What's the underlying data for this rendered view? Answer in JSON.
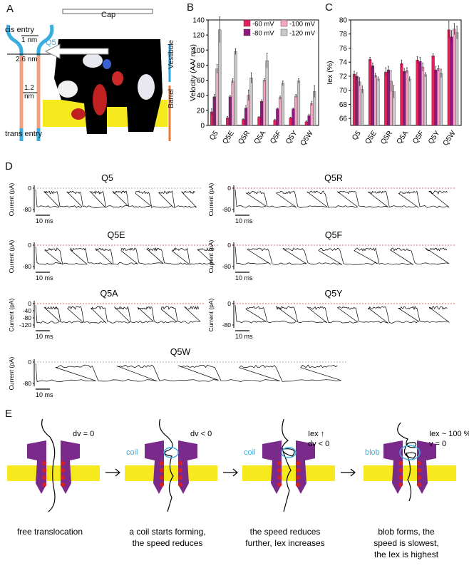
{
  "panels": {
    "a": "A",
    "b": "B",
    "c": "C",
    "d": "D",
    "e": "E"
  },
  "panelA": {
    "cap": "Cap",
    "cis_entry": "cis entry",
    "trans_entry": "trans entry",
    "d1": "1 nm",
    "d2": "2.6 nm",
    "d3a": "1.2",
    "d3b": "nm",
    "q5": "Q5",
    "vestibule": "Vestibule",
    "barrel": "Barrel",
    "colors": {
      "cis": "#3aaee0",
      "trans": "#f0a080",
      "vestibule": "#2aa6e0",
      "barrel": "#e87a3a",
      "membrane": "#f6ea1e"
    }
  },
  "chart_data": [
    {
      "type": "bar",
      "ylabel": "Velocity (AA/ ms)",
      "ylim": [
        0,
        140
      ],
      "yticks": [
        "0",
        "20",
        "40",
        "60",
        "80",
        "100",
        "120",
        "140"
      ],
      "categories": [
        "Q5",
        "Q5E",
        "Q5R",
        "Q5A",
        "Q5F",
        "Q5Y",
        "Q5W"
      ],
      "series": [
        {
          "name": "-60 mV",
          "color": "#e0245e",
          "values": [
            18,
            10,
            8,
            11,
            7,
            10,
            5
          ]
        },
        {
          "name": "-80 mV",
          "color": "#8b1a7a",
          "values": [
            38,
            38,
            23,
            32,
            22,
            22,
            13
          ]
        },
        {
          "name": "-100 mV",
          "color": "#f2a4c4",
          "values": [
            75,
            59,
            40,
            60,
            37,
            39,
            29
          ]
        },
        {
          "name": "-120 mV",
          "color": "#c8c8c8",
          "values": [
            127,
            98,
            63,
            86,
            56,
            59,
            45
          ]
        }
      ],
      "errors": [
        [
          4,
          2,
          1,
          1,
          1,
          1,
          1
        ],
        [
          3,
          2,
          3,
          2,
          1,
          1,
          2
        ],
        [
          6,
          3,
          7,
          2,
          2,
          2,
          3
        ],
        [
          17,
          4,
          7,
          10,
          3,
          3,
          8
        ]
      ],
      "legend": "top-right"
    },
    {
      "type": "bar",
      "ylabel": "Iex (%)",
      "ylim": [
        65,
        80
      ],
      "yticks": [
        "66",
        "68",
        "70",
        "72",
        "74",
        "76",
        "78",
        "80"
      ],
      "categories": [
        "Q5",
        "Q5E",
        "Q5R",
        "Q5A",
        "Q5F",
        "Q5Y",
        "Q5W"
      ],
      "series": [
        {
          "name": "-60 mV",
          "color": "#e0245e",
          "values": [
            72.3,
            74.4,
            72.6,
            73.8,
            74.3,
            74.9,
            78.6
          ]
        },
        {
          "name": "-80 mV",
          "color": "#8b1a7a",
          "values": [
            72.0,
            73.5,
            72.9,
            72.7,
            74.1,
            72.9,
            77.6
          ]
        },
        {
          "name": "-100 mV",
          "color": "#f2a4c4",
          "values": [
            71.2,
            72.1,
            71.3,
            72.8,
            73.3,
            73.1,
            78.7
          ]
        },
        {
          "name": "-120 mV",
          "color": "#c8c8c8",
          "values": [
            70.1,
            71.6,
            69.8,
            71.6,
            72.2,
            72.4,
            78.2
          ]
        }
      ],
      "errors": [
        [
          0.4,
          0.3,
          0.6,
          0.5,
          0.5,
          0.3,
          1.2
        ],
        [
          0.5,
          0.4,
          0.5,
          0.4,
          0.6,
          0.5,
          0.9
        ],
        [
          0.6,
          0.3,
          1.5,
          0.4,
          0.6,
          0.4,
          0.8
        ],
        [
          0.5,
          0.3,
          0.9,
          0.3,
          0.3,
          0.6,
          0.9
        ]
      ]
    }
  ],
  "traces": [
    {
      "title": "Q5",
      "ylabel": "Current (pA)",
      "ticks": [
        "0",
        "-80"
      ],
      "scalebar": "10 ms",
      "blocks": 7,
      "dashed": false
    },
    {
      "title": "Q5R",
      "ylabel": "Current (pA)",
      "ticks": [
        "0",
        "-80"
      ],
      "scalebar": "10 ms",
      "blocks": 7,
      "dashed": true
    },
    {
      "title": "Q5E",
      "ylabel": "Current (pA)",
      "ticks": [
        "0",
        "-80"
      ],
      "scalebar": "10 ms",
      "blocks": 7,
      "dashed": true
    },
    {
      "title": "Q5F",
      "ylabel": "Current (pA)",
      "ticks": [
        "0",
        "-80"
      ],
      "scalebar": "10 ms",
      "blocks": 6,
      "dashed": true
    },
    {
      "title": "Q5A",
      "ylabel": "Current (pA)",
      "ticks": [
        "0",
        "-40",
        "-80",
        "-120"
      ],
      "scalebar": "10 ms",
      "blocks": 7,
      "dashed": true
    },
    {
      "title": "Q5Y",
      "ylabel": "Current (pA)",
      "ticks": [
        "0",
        "-80"
      ],
      "scalebar": "10 ms",
      "blocks": 7,
      "dashed": true
    },
    {
      "title": "Q5W",
      "ylabel": "Current (pA)",
      "ticks": [
        "0",
        "-80"
      ],
      "scalebar": "10 ms",
      "blocks": 5,
      "dashed": false
    }
  ],
  "panelE": {
    "colors": {
      "pore": "#7a2a8a",
      "membrane": "#f6ea1e",
      "beads": "#d0202a",
      "highlight": "#3aaee0"
    },
    "steps": [
      {
        "top": "dv = 0",
        "top2": "",
        "tag": "",
        "caption1": "free translocation",
        "caption2": ""
      },
      {
        "top": "dv < 0",
        "top2": "",
        "tag": "coil",
        "caption1": "a coil starts forming,",
        "caption2": "the speed reduces"
      },
      {
        "top": "Iex ↑",
        "top2": "dv < 0",
        "tag": "coil",
        "caption1": "the speed reduces",
        "caption2": "further, Iex increases"
      },
      {
        "top": "Iex ~ 100 %",
        "top2": "v = 0",
        "tag": "blob",
        "caption1": "blob forms, the",
        "caption2": "speed is slowest,",
        "caption3": "the  Iex is highest"
      }
    ]
  }
}
